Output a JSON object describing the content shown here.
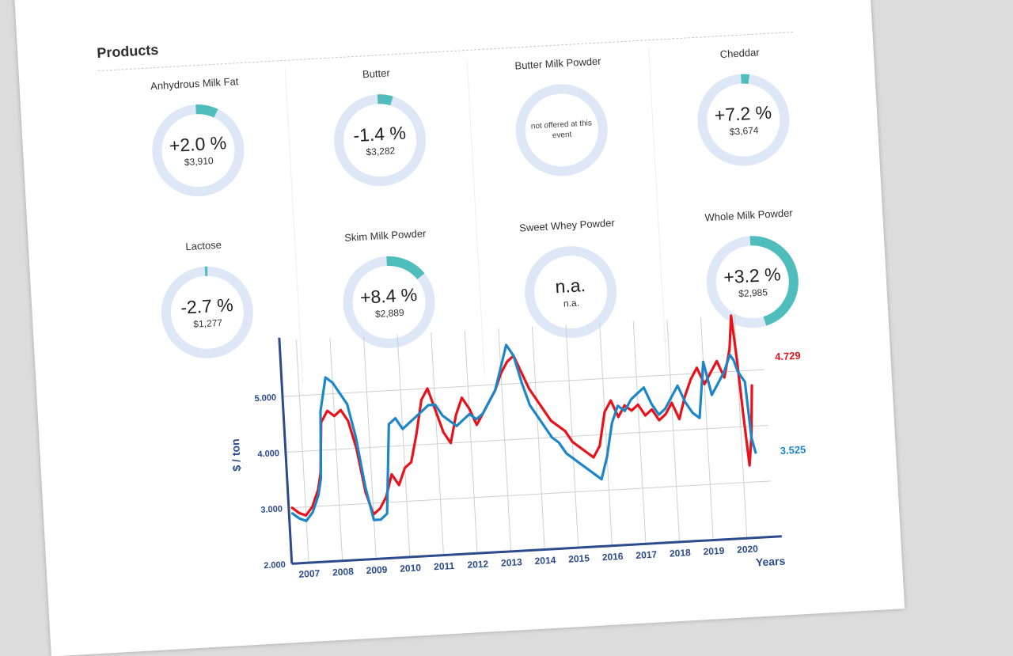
{
  "products": {
    "title": "Products",
    "items": [
      {
        "name": "Anhydrous Milk Fat",
        "change": "+2.0 %",
        "price": "$3,910",
        "fill": 0.08,
        "note": ""
      },
      {
        "name": "Butter",
        "change": "-1.4 %",
        "price": "$3,282",
        "fill": 0.055,
        "note": ""
      },
      {
        "name": "Butter Milk Powder",
        "change": "",
        "price": "",
        "fill": 0,
        "note": "not offered at this event"
      },
      {
        "name": "Cheddar",
        "change": "+7.2 %",
        "price": "$3,674",
        "fill": 0.03,
        "note": ""
      },
      {
        "name": "Lactose",
        "change": "-2.7 %",
        "price": "$1,277",
        "fill": 0.01,
        "note": ""
      },
      {
        "name": "Skim Milk Powder",
        "change": "+8.4 %",
        "price": "$2,889",
        "fill": 0.15,
        "note": ""
      },
      {
        "name": "Sweet Whey Powder",
        "change": "n.a.",
        "price": "n.a.",
        "fill": 0,
        "note": ""
      },
      {
        "name": "Whole Milk Powder",
        "change": "+3.2 %",
        "price": "$2,985",
        "fill": 0.46,
        "note": ""
      }
    ]
  },
  "colors": {
    "ring_track": "#dde7f6",
    "ring_fill": "#4fbdbb",
    "axis": "#2c4b8c",
    "grid": "#cfcfcf",
    "series_red": "#e8121b",
    "series_blue": "#1c86c8"
  },
  "chart_data": {
    "type": "line",
    "title": "",
    "xlabel": "Years",
    "ylabel": "$ / ton",
    "xlim": [
      2006.5,
      2020.8
    ],
    "ylim": [
      2000,
      6000
    ],
    "x_ticks": [
      "2007",
      "2008",
      "2009",
      "2010",
      "2011",
      "2012",
      "2013",
      "2014",
      "2015",
      "2016",
      "2017",
      "2018",
      "2019",
      "2020"
    ],
    "y_ticks": [
      "2.000",
      "3.000",
      "4.000",
      "5.000"
    ],
    "y_tick_values": [
      2000,
      3000,
      4000,
      5000
    ],
    "grid": true,
    "legend": "none",
    "series": [
      {
        "end_label": "4.729 $",
        "color": "#e8121b",
        "x": [
          2006.6,
          2006.8,
          2007.0,
          2007.2,
          2007.4,
          2007.5,
          2007.6,
          2007.8,
          2008.0,
          2008.2,
          2008.4,
          2008.6,
          2008.8,
          2009.0,
          2009.2,
          2009.4,
          2009.6,
          2009.8,
          2010.0,
          2010.2,
          2010.4,
          2010.6,
          2010.8,
          2011.0,
          2011.2,
          2011.4,
          2011.6,
          2011.8,
          2012.0,
          2012.2,
          2012.4,
          2012.6,
          2012.8,
          2013.0,
          2013.2,
          2013.4,
          2013.6,
          2013.8,
          2014.0,
          2014.2,
          2014.4,
          2014.6,
          2014.8,
          2015.0,
          2015.2,
          2015.4,
          2015.6,
          2015.8,
          2016.0,
          2016.2,
          2016.4,
          2016.6,
          2016.8,
          2017.0,
          2017.2,
          2017.4,
          2017.6,
          2017.8,
          2018.0,
          2018.2,
          2018.4,
          2018.6,
          2018.8,
          2019.0,
          2019.2,
          2019.4,
          2019.6,
          2019.8,
          2019.9,
          2020.0,
          2020.1,
          2020.2,
          2020.3,
          2020.4
        ],
        "y": [
          3000,
          2900,
          2850,
          3000,
          3300,
          3600,
          4500,
          4700,
          4600,
          4700,
          4500,
          4000,
          3200,
          2800,
          2900,
          3100,
          3500,
          3300,
          3600,
          3700,
          4200,
          4800,
          5000,
          4600,
          4200,
          4000,
          4500,
          4800,
          4600,
          4300,
          4500,
          4700,
          4900,
          5200,
          5400,
          5500,
          5200,
          4900,
          4700,
          4500,
          4300,
          4200,
          4100,
          3900,
          3800,
          3700,
          3600,
          3800,
          4400,
          4600,
          4300,
          4500,
          4400,
          4500,
          4300,
          4400,
          4200,
          4300,
          4500,
          4200,
          4600,
          4900,
          5100,
          4800,
          5000,
          5200,
          4900,
          5400,
          6000,
          5200,
          4200,
          3300,
          3800,
          4729
        ]
      },
      {
        "end_label": "3.525 $",
        "color": "#1c86c8",
        "x": [
          2006.6,
          2006.8,
          2007.0,
          2007.2,
          2007.4,
          2007.5,
          2007.6,
          2007.8,
          2008.0,
          2008.2,
          2008.4,
          2008.6,
          2008.8,
          2009.0,
          2009.2,
          2009.4,
          2009.6,
          2009.8,
          2010.0,
          2010.2,
          2010.4,
          2010.6,
          2010.8,
          2011.0,
          2011.2,
          2011.4,
          2011.6,
          2011.8,
          2012.0,
          2012.2,
          2012.4,
          2012.6,
          2012.8,
          2013.0,
          2013.2,
          2013.4,
          2013.6,
          2013.8,
          2014.0,
          2014.2,
          2014.4,
          2014.6,
          2014.8,
          2015.0,
          2015.2,
          2015.4,
          2015.6,
          2015.8,
          2016.0,
          2016.2,
          2016.4,
          2016.6,
          2016.8,
          2017.0,
          2017.2,
          2017.4,
          2017.6,
          2017.8,
          2018.0,
          2018.2,
          2018.4,
          2018.6,
          2018.8,
          2019.0,
          2019.2,
          2019.4,
          2019.6,
          2019.8,
          2019.9,
          2020.0,
          2020.1,
          2020.2,
          2020.3,
          2020.4
        ],
        "y": [
          2900,
          2800,
          2750,
          2900,
          3200,
          3500,
          4700,
          5300,
          5200,
          5000,
          4800,
          4200,
          3300,
          2700,
          2700,
          2800,
          4400,
          4500,
          4300,
          4400,
          4500,
          4600,
          4700,
          4700,
          4500,
          4400,
          4300,
          4400,
          4500,
          4400,
          4500,
          4700,
          4900,
          5300,
          5700,
          5500,
          5000,
          4600,
          4400,
          4200,
          4000,
          3900,
          3700,
          3600,
          3500,
          3400,
          3300,
          3200,
          3600,
          4200,
          4500,
          4400,
          4600,
          4700,
          4800,
          4500,
          4300,
          4400,
          4600,
          4800,
          4500,
          4300,
          4200,
          5200,
          4600,
          4800,
          5000,
          5300,
          5200,
          5000,
          4900,
          4800,
          3800,
          3525
        ]
      }
    ]
  }
}
